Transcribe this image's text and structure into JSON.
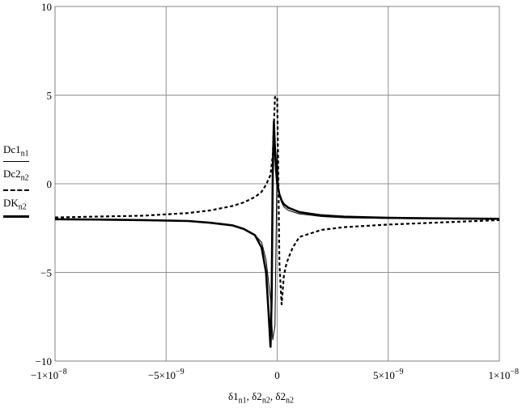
{
  "chart_data": {
    "type": "line",
    "xlim": [
      -1e-08,
      1e-08
    ],
    "ylim": [
      -10,
      10
    ],
    "grid": true,
    "xticks": [
      {
        "value": -1e-08,
        "label": "−1×10",
        "exp": "−8"
      },
      {
        "value": -5e-09,
        "label": "−5×10",
        "exp": "−9"
      },
      {
        "value": 0,
        "label": "0",
        "exp": ""
      },
      {
        "value": 5e-09,
        "label": "5×10",
        "exp": "−9"
      },
      {
        "value": 1e-08,
        "label": "1×10",
        "exp": "−8"
      }
    ],
    "yticks": [
      {
        "value": 10,
        "label": "10"
      },
      {
        "value": 5,
        "label": "5"
      },
      {
        "value": 0,
        "label": "0"
      },
      {
        "value": -5,
        "label": "−5"
      },
      {
        "value": -10,
        "label": "−10"
      }
    ],
    "xlabel": {
      "parts": [
        {
          "base": "δ1",
          "sub": "n1"
        },
        {
          "base": "δ2",
          "sub": "n2"
        },
        {
          "base": "δ2",
          "sub": "n2"
        }
      ],
      "separator": ", "
    },
    "series": [
      {
        "name": "Dc1",
        "sub": "n1",
        "style": "thin",
        "color": "#000000",
        "x": [
          -1e-08,
          -8e-09,
          -6e-09,
          -4e-09,
          -3e-09,
          -2e-09,
          -1.5e-09,
          -1e-09,
          -7e-10,
          -5e-10,
          -3e-10,
          -2e-10,
          -1e-10,
          0,
          5e-11,
          1e-10,
          2e-10,
          3e-10,
          5e-10,
          1e-09,
          2e-09,
          3e-09,
          5e-09,
          7e-09,
          1e-08
        ],
        "y": [
          -2.0,
          -2.0,
          -2.05,
          -2.1,
          -2.2,
          -2.35,
          -2.55,
          -2.9,
          -3.3,
          -4.3,
          -6.5,
          -8.8,
          -8.0,
          1.8,
          0.0,
          -0.5,
          -1.05,
          -1.3,
          -1.5,
          -1.7,
          -1.85,
          -1.92,
          -1.96,
          -1.98,
          -2.0
        ]
      },
      {
        "name": "Dc2",
        "sub": "n2",
        "style": "dashed",
        "color": "#000000",
        "x": [
          -1e-08,
          -8e-09,
          -6e-09,
          -4e-09,
          -3e-09,
          -2e-09,
          -1.5e-09,
          -1e-09,
          -7e-10,
          -5e-10,
          -3e-10,
          -2e-10,
          -1e-10,
          0,
          5e-11,
          1e-10,
          2e-10,
          3e-10,
          4e-10,
          5e-10,
          7e-10,
          1e-09,
          2e-09,
          3e-09,
          5e-09,
          7e-09,
          1e-08
        ],
        "y": [
          -1.9,
          -1.85,
          -1.8,
          -1.65,
          -1.5,
          -1.25,
          -1.05,
          -0.75,
          -0.45,
          -0.05,
          0.5,
          1.6,
          4.9,
          4.9,
          0.5,
          -4.5,
          -6.8,
          -5.2,
          -4.6,
          -4.2,
          -3.6,
          -3.0,
          -2.6,
          -2.45,
          -2.3,
          -2.2,
          -2.05
        ]
      },
      {
        "name": "DK",
        "sub": "n2",
        "style": "thick",
        "color": "#000000",
        "x": [
          -1e-08,
          -8e-09,
          -6e-09,
          -4e-09,
          -3e-09,
          -2e-09,
          -1.5e-09,
          -1e-09,
          -7e-10,
          -5e-10,
          -4e-10,
          -3e-10,
          -2.5e-10,
          -2e-10,
          -1.5e-10,
          -1e-10,
          -5e-11,
          0,
          1e-10,
          2e-10,
          3e-10,
          5e-10,
          1e-09,
          2e-09,
          3e-09,
          5e-09,
          7e-09,
          1e-08
        ],
        "y": [
          -2.0,
          -2.02,
          -2.05,
          -2.1,
          -2.2,
          -2.35,
          -2.55,
          -2.9,
          -3.6,
          -5.0,
          -7.0,
          -9.2,
          -6.5,
          0.5,
          3.5,
          2.0,
          0.8,
          0.0,
          -0.6,
          -0.95,
          -1.15,
          -1.35,
          -1.6,
          -1.78,
          -1.86,
          -1.92,
          -1.95,
          -1.98
        ]
      }
    ]
  }
}
